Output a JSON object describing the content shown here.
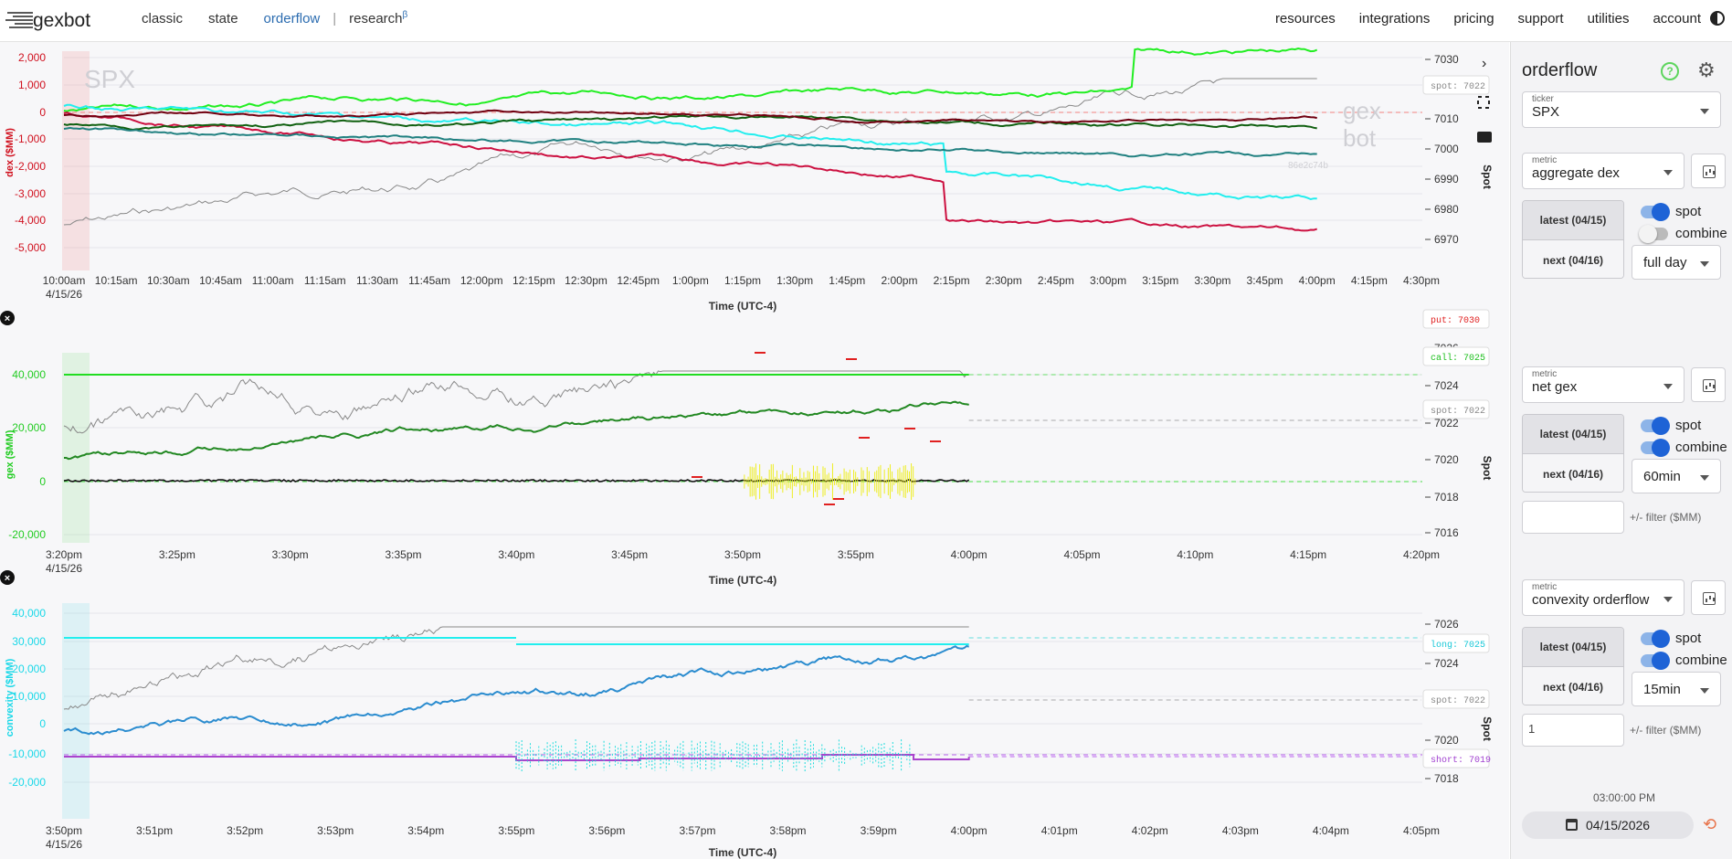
{
  "nav": {
    "brand": "gexbot",
    "left": [
      "classic",
      "state",
      "orderflow",
      "research"
    ],
    "research_sup": "β",
    "right": [
      "resources",
      "integrations",
      "pricing",
      "support",
      "utilities",
      "account"
    ]
  },
  "panel": {
    "title": "orderflow",
    "ticker_label": "ticker",
    "ticker": "SPX",
    "sections": [
      {
        "metric_label": "metric",
        "metric": "aggregate dex",
        "latest": "latest (04/15)",
        "next": "next (04/16)",
        "spot_label": "spot",
        "spot_on": true,
        "combine_label": "combine",
        "combine_on": false,
        "interval": "full day"
      },
      {
        "metric_label": "metric",
        "metric": "net gex",
        "latest": "latest (04/15)",
        "next": "next (04/16)",
        "spot_label": "spot",
        "spot_on": true,
        "combine_label": "combine",
        "combine_on": true,
        "interval": "60min",
        "filter_value": "",
        "filter_label": "+/- filter ($MM)"
      },
      {
        "metric_label": "metric",
        "metric": "convexity orderflow",
        "latest": "latest (04/15)",
        "next": "next (04/16)",
        "spot_label": "spot",
        "spot_on": true,
        "combine_label": "combine",
        "combine_on": true,
        "interval": "15min",
        "filter_value": "1",
        "filter_label": "+/- filter ($MM)"
      }
    ],
    "time": "03:00:00 PM",
    "date": "04/15/2026"
  },
  "charts": [
    {
      "ylabel": "dex ($MM)",
      "ylabel_color": "#d0101e",
      "right_label": "Spot",
      "yticks": [
        "2,000",
        "1,000",
        "0",
        "-1,000",
        "-2,000",
        "-3,000",
        "-4,000",
        "-5,000"
      ],
      "rticks": [
        "7030",
        "7020",
        "7010",
        "7000",
        "6990",
        "6980",
        "6970"
      ],
      "xticks": [
        "10:00am",
        "10:15am",
        "10:30am",
        "10:45am",
        "11:00am",
        "11:15am",
        "11:30am",
        "11:45am",
        "12:00pm",
        "12:15pm",
        "12:30pm",
        "12:45pm",
        "1:00pm",
        "1:15pm",
        "1:30pm",
        "1:45pm",
        "2:00pm",
        "2:15pm",
        "2:30pm",
        "2:45pm",
        "3:00pm",
        "3:15pm",
        "3:30pm",
        "3:45pm",
        "4:00pm",
        "4:15pm",
        "4:30pm"
      ],
      "date": "4/15/26",
      "xlabel": "Time (UTC-4)",
      "watermark_ticker": "SPX",
      "watermark_hash": "86e2c74b",
      "badges": [
        {
          "text": "spot: 7022",
          "color": "#888"
        }
      ]
    },
    {
      "ylabel": "gex ($MM)",
      "ylabel_color": "#22cc22",
      "right_label": "Spot",
      "yticks": [
        "40,000",
        "20,000",
        "0",
        "-20,000"
      ],
      "rticks": [
        "7026",
        "7024",
        "7022",
        "7020",
        "7018",
        "7016"
      ],
      "xticks": [
        "3:20pm",
        "3:25pm",
        "3:30pm",
        "3:35pm",
        "3:40pm",
        "3:45pm",
        "3:50pm",
        "3:55pm",
        "4:00pm",
        "4:05pm",
        "4:10pm",
        "4:15pm",
        "4:20pm"
      ],
      "date": "4/15/26",
      "xlabel": "Time (UTC-4)",
      "badges": [
        {
          "text": "put: 7030",
          "color": "#e02020"
        },
        {
          "text": "call: 7025",
          "color": "#20c020"
        },
        {
          "text": "spot: 7022",
          "color": "#888"
        }
      ]
    },
    {
      "ylabel": "convexity ($MM)",
      "ylabel_color": "#19d8e8",
      "right_label": "Spot",
      "yticks": [
        "40,000",
        "30,000",
        "20,000",
        "10,000",
        "0",
        "-10,000",
        "-20,000"
      ],
      "rticks": [
        "7026",
        "7024",
        "7022",
        "7020",
        "7018"
      ],
      "xticks": [
        "3:50pm",
        "3:51pm",
        "3:52pm",
        "3:53pm",
        "3:54pm",
        "3:55pm",
        "3:56pm",
        "3:57pm",
        "3:58pm",
        "3:59pm",
        "4:00pm",
        "4:01pm",
        "4:02pm",
        "4:03pm",
        "4:04pm",
        "4:05pm"
      ],
      "date": "4/15/26",
      "xlabel": "Time (UTC-4)",
      "badges": [
        {
          "text": "long: 7025",
          "color": "#19c8d8"
        },
        {
          "text": "spot: 7022",
          "color": "#888"
        },
        {
          "text": "short: 7019",
          "color": "#a040d0"
        }
      ]
    }
  ]
}
